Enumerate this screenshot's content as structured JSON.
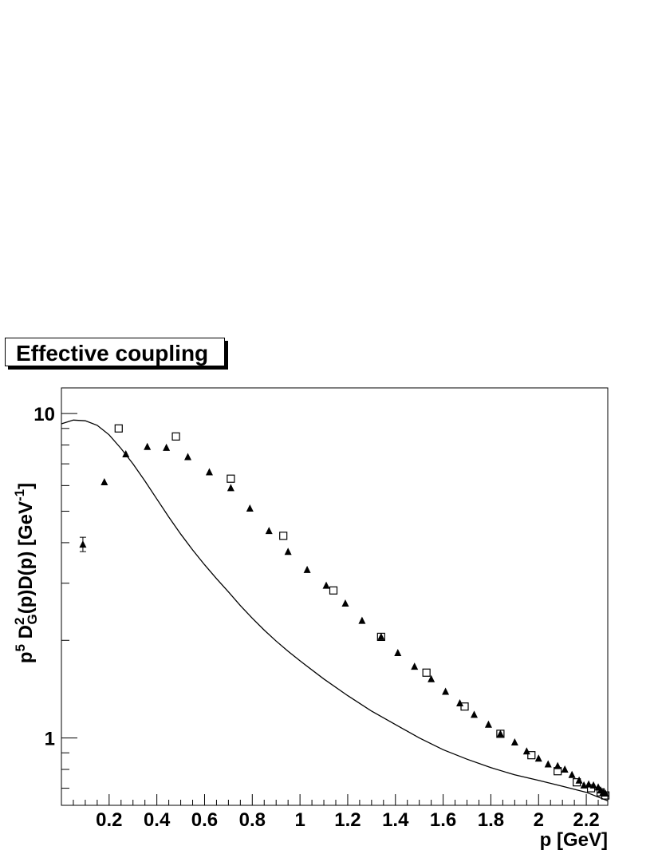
{
  "title": "Effective coupling",
  "chart_data": {
    "type": "scatter",
    "title": "Effective coupling",
    "xlabel": "p [GeV]",
    "ylabel": "p^5 D_G^2(p)D(p) [GeV^-1]",
    "xlim": [
      0.0,
      2.29
    ],
    "ylim": [
      0.62,
      12.0
    ],
    "yscale": "log",
    "grid": false,
    "x_tick_labels": [
      "0.2",
      "0.4",
      "0.6",
      "0.8",
      "1",
      "1.2",
      "1.4",
      "1.6",
      "1.8",
      "2",
      "2.2"
    ],
    "x_ticks": [
      0.2,
      0.4,
      0.6,
      0.8,
      1.0,
      1.2,
      1.4,
      1.6,
      1.8,
      2.0,
      2.2
    ],
    "y_tick_labels": [
      "1",
      "10"
    ],
    "y_ticks": [
      1,
      10
    ],
    "series": [
      {
        "marker": "filled-triangle",
        "color": "#000000",
        "x": [
          0.09,
          0.18,
          0.27,
          0.36,
          0.44,
          0.53,
          0.62,
          0.71,
          0.79,
          0.87,
          0.95,
          1.03,
          1.11,
          1.19,
          1.26,
          1.34,
          1.41,
          1.48,
          1.55,
          1.61,
          1.67,
          1.73,
          1.79,
          1.84,
          1.9,
          1.95,
          2.0,
          2.04,
          2.08,
          2.11,
          2.14,
          2.17,
          2.19,
          2.21,
          2.23,
          2.25,
          2.26,
          2.27,
          2.28
        ],
        "y": [
          3.95,
          6.15,
          7.5,
          7.9,
          7.85,
          7.35,
          6.6,
          5.9,
          5.1,
          4.35,
          3.75,
          3.3,
          2.95,
          2.6,
          2.3,
          2.05,
          1.83,
          1.66,
          1.52,
          1.39,
          1.28,
          1.18,
          1.1,
          1.03,
          0.97,
          0.91,
          0.865,
          0.83,
          0.82,
          0.8,
          0.77,
          0.74,
          0.715,
          0.72,
          0.715,
          0.705,
          0.69,
          0.68,
          0.675
        ]
      },
      {
        "marker": "open-square",
        "color": "#000000",
        "x": [
          0.24,
          0.48,
          0.71,
          0.93,
          1.14,
          1.34,
          1.53,
          1.69,
          1.84,
          1.97,
          2.08,
          2.16,
          2.22,
          2.26,
          2.28
        ],
        "y": [
          9.0,
          8.5,
          6.3,
          4.2,
          2.85,
          2.05,
          1.59,
          1.25,
          1.03,
          0.885,
          0.79,
          0.73,
          0.7,
          0.68,
          0.665
        ]
      },
      {
        "marker": "line",
        "color": "#000000",
        "x": [
          0.0,
          0.05,
          0.1,
          0.15,
          0.2,
          0.25,
          0.3,
          0.35,
          0.4,
          0.45,
          0.5,
          0.55,
          0.6,
          0.65,
          0.7,
          0.75,
          0.8,
          0.85,
          0.9,
          0.95,
          1.0,
          1.1,
          1.2,
          1.3,
          1.4,
          1.5,
          1.6,
          1.7,
          1.8,
          1.9,
          2.0,
          2.1,
          2.2,
          2.29
        ],
        "y": [
          9.3,
          9.55,
          9.5,
          9.2,
          8.6,
          7.8,
          7.0,
          6.2,
          5.45,
          4.8,
          4.25,
          3.8,
          3.42,
          3.1,
          2.82,
          2.56,
          2.34,
          2.15,
          1.99,
          1.85,
          1.73,
          1.52,
          1.35,
          1.21,
          1.1,
          1.0,
          0.92,
          0.86,
          0.81,
          0.77,
          0.74,
          0.71,
          0.68,
          0.64
        ]
      }
    ]
  }
}
